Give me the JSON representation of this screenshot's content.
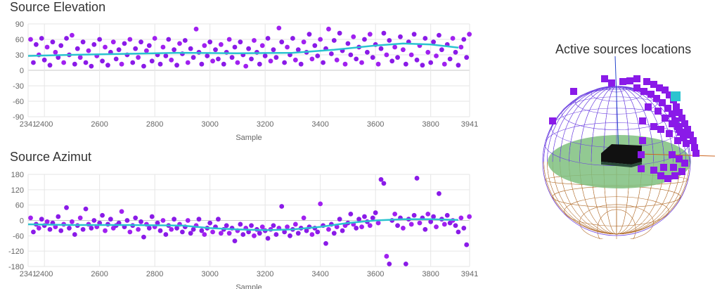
{
  "elevation_title": "Source Elevation",
  "azimut_title": "Source Azimut",
  "sphere_title": "Active sources locations",
  "colors": {
    "point": "#8a1ae8",
    "point_alt": "#a020f0",
    "trend": "#2bc4cf",
    "grid": "#e6e6e6",
    "sphere_upper": "#6b3fe0",
    "sphere_lower": "#b06a28",
    "plane": "#7fbf7f"
  },
  "chart_data": [
    {
      "type": "scatter",
      "title": "Source Elevation",
      "xlabel": "Sample",
      "ylabel": "",
      "xlim": [
        2341,
        3941
      ],
      "ylim": [
        -90,
        90
      ],
      "xticks": [
        "2341",
        "2400",
        "2600",
        "2800",
        "3000",
        "3200",
        "3400",
        "3600",
        "3800",
        "3941"
      ],
      "xtick_values": [
        2341,
        2400,
        2600,
        2800,
        3000,
        3200,
        3400,
        3600,
        3800,
        3941
      ],
      "yticks": [
        "90",
        "60",
        "30",
        "0",
        "-30",
        "-60",
        "-90"
      ],
      "ytick_values": [
        90,
        60,
        30,
        0,
        -30,
        -60,
        -90
      ],
      "trend": {
        "x": [
          2341,
          2500,
          2700,
          2900,
          3100,
          3300,
          3450,
          3600,
          3700,
          3800,
          3900
        ],
        "y": [
          28,
          30,
          32,
          34,
          33,
          34,
          40,
          48,
          52,
          50,
          44
        ]
      },
      "points": [
        [
          2350,
          60
        ],
        [
          2360,
          15
        ],
        [
          2370,
          50
        ],
        [
          2380,
          30
        ],
        [
          2390,
          62
        ],
        [
          2400,
          20
        ],
        [
          2410,
          45
        ],
        [
          2420,
          10
        ],
        [
          2430,
          55
        ],
        [
          2440,
          35
        ],
        [
          2450,
          25
        ],
        [
          2460,
          48
        ],
        [
          2470,
          15
        ],
        [
          2480,
          62
        ],
        [
          2490,
          30
        ],
        [
          2500,
          68
        ],
        [
          2510,
          12
        ],
        [
          2520,
          42
        ],
        [
          2530,
          25
        ],
        [
          2540,
          55
        ],
        [
          2550,
          15
        ],
        [
          2560,
          38
        ],
        [
          2570,
          8
        ],
        [
          2580,
          50
        ],
        [
          2590,
          28
        ],
        [
          2600,
          60
        ],
        [
          2610,
          18
        ],
        [
          2620,
          45
        ],
        [
          2630,
          10
        ],
        [
          2640,
          35
        ],
        [
          2650,
          55
        ],
        [
          2660,
          22
        ],
        [
          2670,
          40
        ],
        [
          2680,
          12
        ],
        [
          2690,
          52
        ],
        [
          2700,
          30
        ],
        [
          2710,
          60
        ],
        [
          2720,
          15
        ],
        [
          2730,
          42
        ],
        [
          2740,
          25
        ],
        [
          2750,
          55
        ],
        [
          2760,
          8
        ],
        [
          2770,
          38
        ],
        [
          2780,
          48
        ],
        [
          2790,
          18
        ],
        [
          2800,
          62
        ],
        [
          2810,
          30
        ],
        [
          2820,
          12
        ],
        [
          2830,
          45
        ],
        [
          2840,
          28
        ],
        [
          2850,
          60
        ],
        [
          2860,
          20
        ],
        [
          2870,
          40
        ],
        [
          2880,
          10
        ],
        [
          2890,
          52
        ],
        [
          2900,
          32
        ],
        [
          2910,
          58
        ],
        [
          2920,
          15
        ],
        [
          2930,
          42
        ],
        [
          2940,
          25
        ],
        [
          2950,
          80
        ],
        [
          2960,
          35
        ],
        [
          2970,
          12
        ],
        [
          2980,
          48
        ],
        [
          2990,
          28
        ],
        [
          3000,
          55
        ],
        [
          3010,
          18
        ],
        [
          3020,
          40
        ],
        [
          3030,
          22
        ],
        [
          3040,
          50
        ],
        [
          3050,
          12
        ],
        [
          3060,
          35
        ],
        [
          3070,
          60
        ],
        [
          3080,
          25
        ],
        [
          3090,
          45
        ],
        [
          3100,
          15
        ],
        [
          3110,
          55
        ],
        [
          3120,
          30
        ],
        [
          3130,
          8
        ],
        [
          3140,
          42
        ],
        [
          3150,
          22
        ],
        [
          3160,
          58
        ],
        [
          3170,
          35
        ],
        [
          3180,
          12
        ],
        [
          3190,
          48
        ],
        [
          3200,
          28
        ],
        [
          3210,
          62
        ],
        [
          3220,
          18
        ],
        [
          3230,
          40
        ],
        [
          3240,
          25
        ],
        [
          3250,
          82
        ],
        [
          3260,
          55
        ],
        [
          3270,
          15
        ],
        [
          3280,
          45
        ],
        [
          3290,
          30
        ],
        [
          3300,
          62
        ],
        [
          3310,
          20
        ],
        [
          3320,
          40
        ],
        [
          3330,
          12
        ],
        [
          3340,
          55
        ],
        [
          3350,
          35
        ],
        [
          3360,
          70
        ],
        [
          3370,
          22
        ],
        [
          3380,
          48
        ],
        [
          3390,
          28
        ],
        [
          3400,
          60
        ],
        [
          3410,
          15
        ],
        [
          3420,
          42
        ],
        [
          3430,
          80
        ],
        [
          3440,
          32
        ],
        [
          3450,
          58
        ],
        [
          3460,
          20
        ],
        [
          3470,
          72
        ],
        [
          3480,
          38
        ],
        [
          3490,
          12
        ],
        [
          3500,
          52
        ],
        [
          3510,
          30
        ],
        [
          3520,
          65
        ],
        [
          3530,
          22
        ],
        [
          3540,
          45
        ],
        [
          3550,
          15
        ],
        [
          3560,
          60
        ],
        [
          3570,
          35
        ],
        [
          3580,
          70
        ],
        [
          3590,
          25
        ],
        [
          3600,
          50
        ],
        [
          3610,
          12
        ],
        [
          3620,
          42
        ],
        [
          3630,
          72
        ],
        [
          3640,
          30
        ],
        [
          3650,
          58
        ],
        [
          3660,
          18
        ],
        [
          3670,
          45
        ],
        [
          3680,
          25
        ],
        [
          3690,
          65
        ],
        [
          3700,
          40
        ],
        [
          3710,
          12
        ],
        [
          3720,
          55
        ],
        [
          3730,
          30
        ],
        [
          3740,
          70
        ],
        [
          3750,
          20
        ],
        [
          3760,
          48
        ],
        [
          3770,
          10
        ],
        [
          3780,
          62
        ],
        [
          3790,
          35
        ],
        [
          3800,
          15
        ],
        [
          3810,
          55
        ],
        [
          3820,
          28
        ],
        [
          3830,
          68
        ],
        [
          3840,
          40
        ],
        [
          3850,
          12
        ],
        [
          3860,
          50
        ],
        [
          3870,
          22
        ],
        [
          3880,
          62
        ],
        [
          3890,
          35
        ],
        [
          3900,
          10
        ],
        [
          3910,
          45
        ],
        [
          3920,
          60
        ],
        [
          3930,
          25
        ],
        [
          3940,
          70
        ]
      ]
    },
    {
      "type": "scatter",
      "title": "Source Azimut",
      "xlabel": "Sample",
      "ylabel": "",
      "xlim": [
        2341,
        3941
      ],
      "ylim": [
        -180,
        180
      ],
      "xticks": [
        "2341",
        "2400",
        "2600",
        "2800",
        "3000",
        "3200",
        "3400",
        "3600",
        "3800",
        "3941"
      ],
      "xtick_values": [
        2341,
        2400,
        2600,
        2800,
        3000,
        3200,
        3400,
        3600,
        3800,
        3941
      ],
      "yticks": [
        "180",
        "120",
        "60",
        "0",
        "-60",
        "-120",
        "-180"
      ],
      "ytick_values": [
        180,
        120,
        60,
        0,
        -60,
        -120,
        -180
      ],
      "trend": {
        "x": [
          2341,
          2500,
          2700,
          2900,
          3000,
          3100,
          3200,
          3300,
          3400,
          3500,
          3600,
          3700,
          3800,
          3900
        ],
        "y": [
          -15,
          -18,
          -18,
          -20,
          -30,
          -35,
          -38,
          -35,
          -25,
          -10,
          0,
          5,
          5,
          2
        ]
      },
      "points": [
        [
          2350,
          10
        ],
        [
          2360,
          -45
        ],
        [
          2370,
          -15
        ],
        [
          2380,
          -30
        ],
        [
          2390,
          5
        ],
        [
          2400,
          -20
        ],
        [
          2410,
          -5
        ],
        [
          2420,
          -35
        ],
        [
          2430,
          -10
        ],
        [
          2440,
          -25
        ],
        [
          2450,
          15
        ],
        [
          2460,
          -40
        ],
        [
          2470,
          -15
        ],
        [
          2480,
          50
        ],
        [
          2490,
          -30
        ],
        [
          2500,
          -5
        ],
        [
          2510,
          -55
        ],
        [
          2520,
          -20
        ],
        [
          2530,
          10
        ],
        [
          2540,
          -35
        ],
        [
          2550,
          45
        ],
        [
          2560,
          -15
        ],
        [
          2570,
          -30
        ],
        [
          2580,
          0
        ],
        [
          2590,
          -25
        ],
        [
          2600,
          -10
        ],
        [
          2610,
          20
        ],
        [
          2620,
          -40
        ],
        [
          2630,
          -15
        ],
        [
          2640,
          5
        ],
        [
          2650,
          -30
        ],
        [
          2660,
          -20
        ],
        [
          2670,
          -10
        ],
        [
          2680,
          35
        ],
        [
          2690,
          -25
        ],
        [
          2700,
          0
        ],
        [
          2710,
          -45
        ],
        [
          2720,
          -20
        ],
        [
          2730,
          10
        ],
        [
          2740,
          -35
        ],
        [
          2750,
          -5
        ],
        [
          2760,
          -65
        ],
        [
          2770,
          -15
        ],
        [
          2780,
          -30
        ],
        [
          2790,
          15
        ],
        [
          2800,
          -25
        ],
        [
          2810,
          -10
        ],
        [
          2820,
          -40
        ],
        [
          2830,
          0
        ],
        [
          2840,
          -55
        ],
        [
          2850,
          -20
        ],
        [
          2860,
          -35
        ],
        [
          2870,
          5
        ],
        [
          2880,
          -30
        ],
        [
          2890,
          -15
        ],
        [
          2900,
          -45
        ],
        [
          2910,
          -25
        ],
        [
          2920,
          0
        ],
        [
          2930,
          -50
        ],
        [
          2940,
          -35
        ],
        [
          2950,
          -20
        ],
        [
          2960,
          5
        ],
        [
          2970,
          -40
        ],
        [
          2980,
          -55
        ],
        [
          2990,
          -30
        ],
        [
          3000,
          -10
        ],
        [
          3010,
          -45
        ],
        [
          3020,
          -25
        ],
        [
          3030,
          5
        ],
        [
          3040,
          -50
        ],
        [
          3050,
          -35
        ],
        [
          3060,
          -20
        ],
        [
          3070,
          -50
        ],
        [
          3080,
          -30
        ],
        [
          3090,
          -80
        ],
        [
          3100,
          -40
        ],
        [
          3110,
          -15
        ],
        [
          3120,
          -55
        ],
        [
          3130,
          -30
        ],
        [
          3140,
          -45
        ],
        [
          3150,
          -20
        ],
        [
          3160,
          -60
        ],
        [
          3170,
          -35
        ],
        [
          3180,
          -50
        ],
        [
          3190,
          -25
        ],
        [
          3200,
          -40
        ],
        [
          3210,
          -70
        ],
        [
          3220,
          -35
        ],
        [
          3230,
          -20
        ],
        [
          3240,
          -55
        ],
        [
          3250,
          -30
        ],
        [
          3260,
          55
        ],
        [
          3270,
          -45
        ],
        [
          3280,
          -25
        ],
        [
          3290,
          -60
        ],
        [
          3300,
          -35
        ],
        [
          3310,
          -15
        ],
        [
          3320,
          -50
        ],
        [
          3330,
          -30
        ],
        [
          3340,
          10
        ],
        [
          3350,
          -40
        ],
        [
          3360,
          -25
        ],
        [
          3370,
          -55
        ],
        [
          3380,
          -30
        ],
        [
          3390,
          -45
        ],
        [
          3400,
          65
        ],
        [
          3410,
          -20
        ],
        [
          3420,
          -90
        ],
        [
          3430,
          -35
        ],
        [
          3440,
          -15
        ],
        [
          3450,
          -50
        ],
        [
          3460,
          -25
        ],
        [
          3470,
          5
        ],
        [
          3480,
          -40
        ],
        [
          3490,
          -20
        ],
        [
          3500,
          -10
        ],
        [
          3510,
          25
        ],
        [
          3520,
          -15
        ],
        [
          3530,
          -30
        ],
        [
          3540,
          5
        ],
        [
          3550,
          -25
        ],
        [
          3560,
          15
        ],
        [
          3570,
          -5
        ],
        [
          3580,
          -20
        ],
        [
          3590,
          10
        ],
        [
          3600,
          30
        ],
        [
          3610,
          -10
        ],
        [
          3620,
          160
        ],
        [
          3630,
          145
        ],
        [
          3640,
          -140
        ],
        [
          3650,
          -170
        ],
        [
          3660,
          0
        ],
        [
          3670,
          25
        ],
        [
          3680,
          -20
        ],
        [
          3690,
          10
        ],
        [
          3700,
          -30
        ],
        [
          3710,
          -170
        ],
        [
          3720,
          5
        ],
        [
          3730,
          -15
        ],
        [
          3740,
          20
        ],
        [
          3750,
          165
        ],
        [
          3760,
          -10
        ],
        [
          3770,
          10
        ],
        [
          3780,
          -35
        ],
        [
          3790,
          25
        ],
        [
          3800,
          -5
        ],
        [
          3810,
          15
        ],
        [
          3820,
          -25
        ],
        [
          3830,
          105
        ],
        [
          3840,
          5
        ],
        [
          3850,
          -15
        ],
        [
          3860,
          20
        ],
        [
          3870,
          -10
        ],
        [
          3880,
          0
        ],
        [
          3890,
          -20
        ],
        [
          3900,
          -45
        ],
        [
          3910,
          10
        ],
        [
          3920,
          -30
        ],
        [
          3930,
          -95
        ],
        [
          3940,
          15
        ]
      ]
    }
  ]
}
